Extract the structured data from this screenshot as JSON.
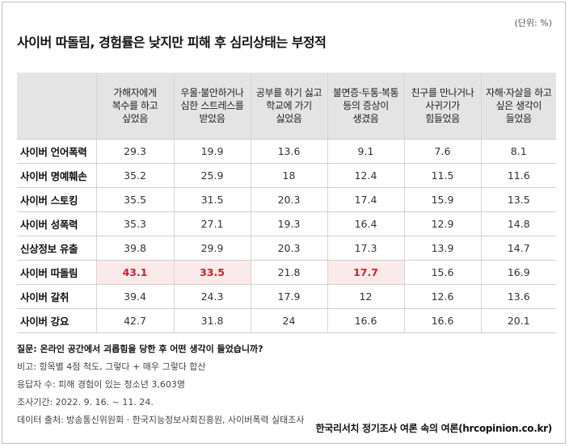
{
  "unit_label": "(단위: %)",
  "chart_data": {
    "type": "table",
    "title": "사이버 따돌림, 경험률은 낮지만 피해 후 심리상태는 부정적",
    "columns": [
      "가해자에게 복수를 하고 싶었음",
      "우울·불안하거나 심한 스트레스를 받았음",
      "공부를 하기 싫고 학교에 가기 싫었음",
      "불면증·두통·복통 등의 증상이 생겼음",
      "친구를 만나거나 사귀기가 힘들었음",
      "자해·자살을 하고 싶은 생각이 들었음"
    ],
    "header_lines": [
      [
        "가해자에게",
        "복수를 하고",
        "싶었음"
      ],
      [
        "우울·불안하거나",
        "심한 스트레스를",
        "받았음"
      ],
      [
        "공부를 하기 싫고",
        "학교에 가기",
        "싫었음"
      ],
      [
        "불면증·두통·복통",
        "등의 증상이",
        "생겼음"
      ],
      [
        "친구를 만나거나",
        "사귀기가",
        "힘들었음"
      ],
      [
        "자해·자살을 하고",
        "싶은 생각이",
        "들었음"
      ]
    ],
    "rows": [
      {
        "name": "사이버 언어폭력",
        "values": [
          "29.3",
          "19.9",
          "13.6",
          "9.1",
          "7.6",
          "8.1"
        ],
        "highlight": [
          false,
          false,
          false,
          false,
          false,
          false
        ]
      },
      {
        "name": "사이버 명예훼손",
        "values": [
          "35.2",
          "25.9",
          "18",
          "12.4",
          "11.5",
          "11.6"
        ],
        "highlight": [
          false,
          false,
          false,
          false,
          false,
          false
        ]
      },
      {
        "name": "사이버 스토킹",
        "values": [
          "35.5",
          "31.5",
          "20.3",
          "17.4",
          "15.9",
          "13.5"
        ],
        "highlight": [
          false,
          false,
          false,
          false,
          false,
          false
        ]
      },
      {
        "name": "사이버 성폭력",
        "values": [
          "35.3",
          "27.1",
          "19.3",
          "16.4",
          "12.9",
          "14.8"
        ],
        "highlight": [
          false,
          false,
          false,
          false,
          false,
          false
        ]
      },
      {
        "name": "신상정보 유출",
        "values": [
          "39.8",
          "29.9",
          "20.3",
          "17.3",
          "13.9",
          "14.7"
        ],
        "highlight": [
          false,
          false,
          false,
          false,
          false,
          false
        ]
      },
      {
        "name": "사이버 따돌림",
        "values": [
          "43.1",
          "33.5",
          "21.8",
          "17.7",
          "15.6",
          "16.9"
        ],
        "highlight": [
          true,
          true,
          false,
          true,
          false,
          false
        ]
      },
      {
        "name": "사이버 갈취",
        "values": [
          "39.4",
          "24.3",
          "17.9",
          "12",
          "12.6",
          "13.6"
        ],
        "highlight": [
          false,
          false,
          false,
          false,
          false,
          false
        ]
      },
      {
        "name": "사이버 강요",
        "values": [
          "42.7",
          "31.8",
          "24",
          "16.6",
          "16.6",
          "20.1"
        ],
        "highlight": [
          false,
          false,
          false,
          false,
          false,
          false
        ]
      }
    ],
    "highlight_color": "#d0202a",
    "highlight_bg": "#fbeaea",
    "header_bg": "#e4e4e4"
  },
  "notes": {
    "question": "질문: 온라인 공간에서 괴롭힘을 당한 후 어떤 생각이 들었습니까?",
    "remark": "비고: 항목별 4점 척도, 그렇다 + 매우 그렇다 합산",
    "respondents": "응답자 수: 피해 경험이 있는 청소년 3,603명",
    "period": "조사기간: 2022. 9. 16. ~ 11. 24.",
    "source": "데이터 출처: 방송통신위원회 · 한국지능정보사회진흥원, 사이버폭력 실태조사"
  },
  "footer_source": "한국리서치 정기조사 여론 속의 여론(hrcopinion.co.kr)"
}
